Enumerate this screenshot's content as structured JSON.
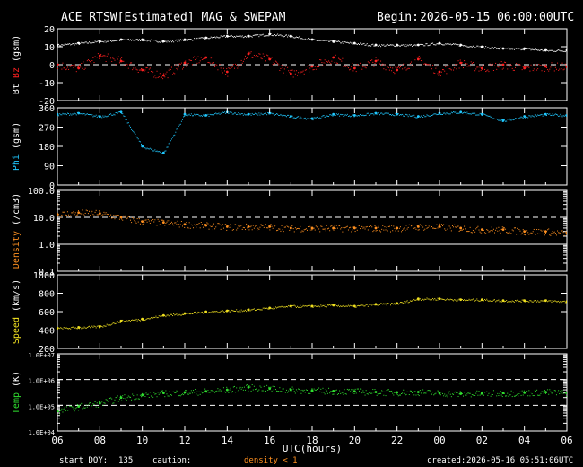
{
  "header": {
    "title": "ACE RTSW[Estimated] MAG & SWEPAM",
    "begin_label": "Begin:",
    "begin_time": "2026-05-15 06:00:00UTC"
  },
  "footer": {
    "start_doy_label": "start DOY:",
    "start_doy": "135",
    "caution_label": "caution:",
    "caution_text": "density < 1",
    "created_label": "created:",
    "created_time": "2026-05-16 05:51:06UTC"
  },
  "colors": {
    "bt": "#ffffff",
    "bz": "#ff2020",
    "phi": "#20c8ff",
    "density": "#ff9020",
    "speed": "#f0e020",
    "temp": "#30e030",
    "axis": "#ffffff",
    "caution": "#ff9020"
  },
  "chart_data": [
    {
      "type": "scatter",
      "ylabel_parts": [
        "Bt",
        "Bz",
        "(gsm)"
      ],
      "ylim": [
        -20,
        20
      ],
      "yticks": [
        "20",
        "10",
        "0",
        "-10",
        "-20"
      ],
      "ytick_values": [
        20,
        10,
        0,
        -10,
        -20
      ],
      "dashed_lines": [
        0
      ],
      "series": [
        {
          "name": "Bt",
          "x": [
            0,
            1,
            2,
            3,
            4,
            5,
            6,
            7,
            8,
            9,
            10,
            11,
            12,
            13,
            14,
            15,
            16,
            17,
            18,
            19,
            20,
            21,
            22,
            23,
            24
          ],
          "values": [
            11,
            12,
            13,
            14,
            14,
            13,
            14,
            15,
            16,
            16,
            17,
            16,
            14,
            13,
            12,
            11,
            11,
            11,
            12,
            11,
            10,
            9,
            9,
            8,
            8
          ]
        },
        {
          "name": "Bz",
          "x": [
            0,
            1,
            2,
            3,
            4,
            5,
            6,
            7,
            8,
            9,
            10,
            11,
            12,
            13,
            14,
            15,
            16,
            17,
            18,
            19,
            20,
            21,
            22,
            23,
            24
          ],
          "values": [
            0,
            -2,
            5,
            2,
            -3,
            -6,
            1,
            4,
            -4,
            6,
            3,
            -5,
            -1,
            4,
            -2,
            2,
            -3,
            3,
            -4,
            1,
            -2,
            0,
            -2,
            -1,
            -1
          ]
        }
      ]
    },
    {
      "type": "scatter",
      "ylabel_parts": [
        "Phi",
        "(gsm)"
      ],
      "ylim": [
        0,
        360
      ],
      "yticks": [
        "360",
        "270",
        "180",
        "90",
        "0"
      ],
      "ytick_values": [
        360,
        270,
        180,
        90,
        0
      ],
      "series": [
        {
          "name": "Phi",
          "x": [
            0,
            1,
            2,
            3,
            4,
            5,
            6,
            7,
            8,
            9,
            10,
            11,
            12,
            13,
            14,
            15,
            16,
            17,
            18,
            19,
            20,
            21,
            22,
            23,
            24
          ],
          "values": [
            330,
            335,
            320,
            340,
            180,
            150,
            330,
            325,
            340,
            330,
            335,
            320,
            310,
            330,
            325,
            335,
            330,
            320,
            335,
            340,
            330,
            300,
            320,
            330,
            325
          ]
        }
      ]
    },
    {
      "type": "scatter",
      "ylabel_parts": [
        "Density",
        "(/cm3)"
      ],
      "yscale": "log",
      "ylim": [
        0.1,
        100
      ],
      "yticks": [
        "100.0",
        "10.0",
        "1.0",
        "0.1"
      ],
      "ytick_values": [
        100,
        10,
        1,
        0.1
      ],
      "dashed_lines": [
        10
      ],
      "solid_lines": [
        1
      ],
      "series": [
        {
          "name": "Density",
          "x": [
            0,
            1,
            2,
            3,
            4,
            5,
            6,
            7,
            8,
            9,
            10,
            11,
            12,
            13,
            14,
            15,
            16,
            17,
            18,
            19,
            20,
            21,
            22,
            23,
            24
          ],
          "values": [
            13,
            15,
            14,
            10,
            7,
            6.5,
            5.5,
            5,
            4.5,
            4.5,
            4.5,
            4,
            4,
            4,
            4,
            4,
            4,
            4.5,
            4.5,
            4,
            3.5,
            3.5,
            3,
            3,
            2.5
          ]
        }
      ]
    },
    {
      "type": "scatter",
      "ylabel_parts": [
        "Speed",
        "(km/s)"
      ],
      "ylim": [
        200,
        1000
      ],
      "yticks": [
        "1000",
        "800",
        "600",
        "400",
        "200"
      ],
      "ytick_values": [
        1000,
        800,
        600,
        400,
        200
      ],
      "series": [
        {
          "name": "Speed",
          "x": [
            0,
            1,
            2,
            3,
            4,
            5,
            6,
            7,
            8,
            9,
            10,
            11,
            12,
            13,
            14,
            15,
            16,
            17,
            18,
            19,
            20,
            21,
            22,
            23,
            24
          ],
          "values": [
            420,
            430,
            440,
            500,
            520,
            560,
            580,
            600,
            610,
            620,
            640,
            660,
            660,
            670,
            660,
            680,
            690,
            740,
            740,
            730,
            730,
            720,
            720,
            720,
            710
          ]
        }
      ]
    },
    {
      "type": "scatter",
      "ylabel_parts": [
        "Temp",
        "(K)"
      ],
      "yscale": "log",
      "ylim": [
        10000,
        10000000
      ],
      "yticks": [
        "1.0E+07",
        "1.0E+06",
        "1.0E+05",
        "1.0E+04"
      ],
      "ytick_values": [
        10000000,
        1000000,
        100000,
        10000
      ],
      "dashed_lines": [
        1000000,
        100000
      ],
      "series": [
        {
          "name": "Temp",
          "x": [
            0,
            1,
            2,
            3,
            4,
            5,
            6,
            7,
            8,
            9,
            10,
            11,
            12,
            13,
            14,
            15,
            16,
            17,
            18,
            19,
            20,
            21,
            22,
            23,
            24
          ],
          "values": [
            60000,
            90000,
            120000,
            200000,
            250000,
            300000,
            320000,
            350000,
            400000,
            500000,
            450000,
            400000,
            380000,
            360000,
            350000,
            330000,
            320000,
            330000,
            300000,
            280000,
            290000,
            300000,
            310000,
            330000,
            300000
          ]
        }
      ]
    }
  ],
  "x_axis": {
    "label": "UTC(hours)",
    "xlim": [
      0,
      24
    ],
    "tick_labels": [
      "06",
      "08",
      "10",
      "12",
      "14",
      "16",
      "18",
      "20",
      "22",
      "00",
      "02",
      "04",
      "06"
    ]
  }
}
